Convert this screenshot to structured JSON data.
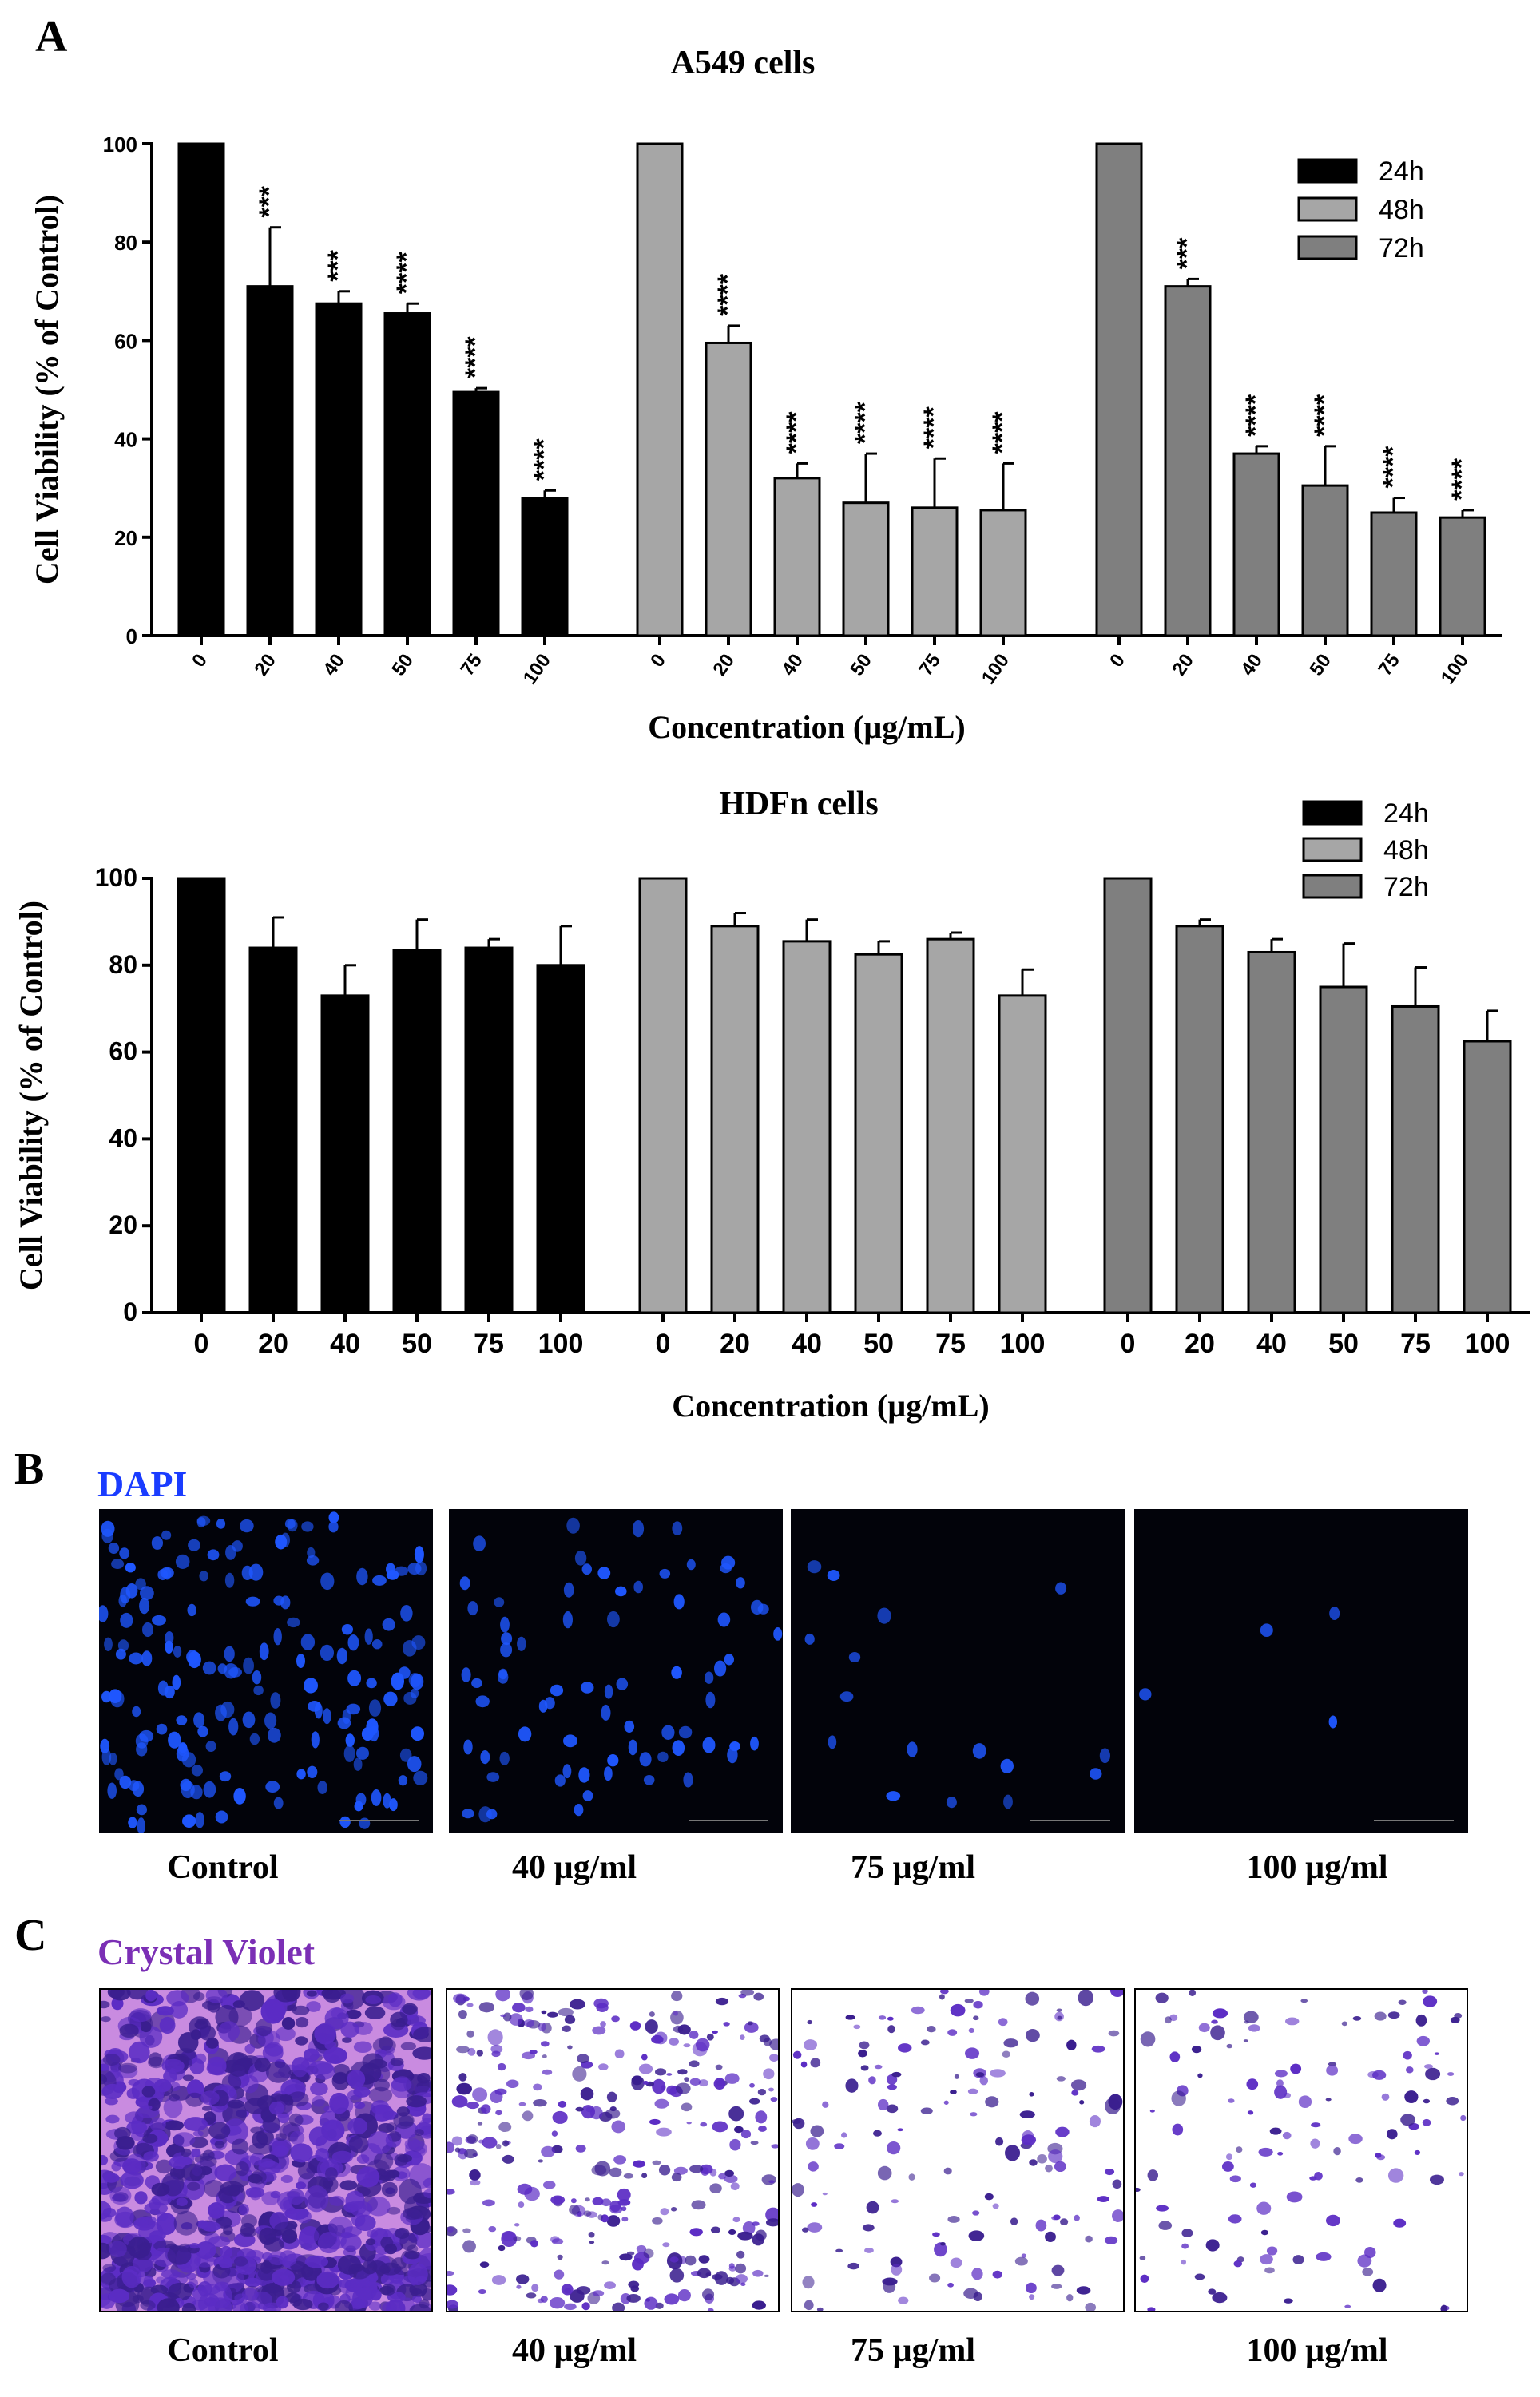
{
  "panel_labels": {
    "a": "A",
    "b": "B",
    "c": "C"
  },
  "chart_data": [
    {
      "type": "bar",
      "title": "A549 cells",
      "xlabel": "Concentration (µg/mL)",
      "ylabel": "Cell Viability (% of Control)",
      "ylim": [
        0,
        100
      ],
      "yticks": [
        "0",
        "20",
        "40",
        "60",
        "80",
        "100"
      ],
      "categories": [
        "0",
        "20",
        "40",
        "50",
        "75",
        "100"
      ],
      "legend_position": "top-right",
      "series": [
        {
          "name": "24h",
          "color": "#000000",
          "values": [
            100,
            71,
            67.5,
            65.5,
            49.5,
            28
          ],
          "errors": [
            0,
            12,
            2.5,
            2,
            0.8,
            1.5
          ],
          "significance": [
            "",
            "***",
            "***",
            "****",
            "****",
            "****"
          ]
        },
        {
          "name": "48h",
          "color": "#a6a6a6",
          "values": [
            100,
            59.5,
            32,
            27,
            26,
            25.5
          ],
          "errors": [
            0,
            3.5,
            3,
            10,
            10,
            9.5
          ],
          "significance": [
            "",
            "****",
            "****",
            "****",
            "****",
            "****"
          ]
        },
        {
          "name": "72h",
          "color": "#7f7f7f",
          "values": [
            100,
            71,
            37,
            30.5,
            25,
            24
          ],
          "errors": [
            0,
            1.5,
            1.5,
            8,
            3,
            1.5
          ],
          "significance": [
            "",
            "***",
            "****",
            "****",
            "****",
            "****"
          ]
        }
      ]
    },
    {
      "type": "bar",
      "title": "HDFn cells",
      "xlabel": "Concentration (µg/mL)",
      "ylabel": "Cell Viability (% of Control)",
      "ylim": [
        0,
        100
      ],
      "yticks": [
        "0",
        "20",
        "40",
        "60",
        "80",
        "100"
      ],
      "categories": [
        "0",
        "20",
        "40",
        "50",
        "75",
        "100"
      ],
      "legend_position": "top-right",
      "series": [
        {
          "name": "24h",
          "color": "#000000",
          "values": [
            100,
            84,
            73,
            83.5,
            84,
            80
          ],
          "errors": [
            0,
            7,
            7,
            7,
            2,
            9
          ]
        },
        {
          "name": "48h",
          "color": "#a6a6a6",
          "values": [
            100,
            89,
            85.5,
            82.5,
            86,
            73
          ],
          "errors": [
            0,
            3,
            5,
            3,
            1.5,
            6
          ]
        },
        {
          "name": "72h",
          "color": "#7f7f7f",
          "values": [
            100,
            89,
            83,
            75,
            70.5,
            62.5
          ],
          "errors": [
            0,
            1.5,
            3,
            10,
            9,
            7
          ]
        }
      ]
    }
  ],
  "dapi": {
    "title": "DAPI",
    "title_color": "#1a3cff",
    "captions": [
      "Control",
      "40 µg/ml",
      "75 µg/ml",
      "100 µg/ml"
    ],
    "background": "#02030a",
    "nuclei_color": "#1f57ff",
    "cell_density": [
      180,
      75,
      16,
      4
    ]
  },
  "crystal_violet": {
    "title": "Crystal Violet",
    "title_color": "#7b2fb5",
    "captions": [
      "Control",
      "40 µg/ml",
      "75 µg/ml",
      "100 µg/ml"
    ],
    "background": "#ffffff",
    "stain_color": "#5b2cc4",
    "cell_density": [
      900,
      320,
      150,
      120
    ]
  }
}
